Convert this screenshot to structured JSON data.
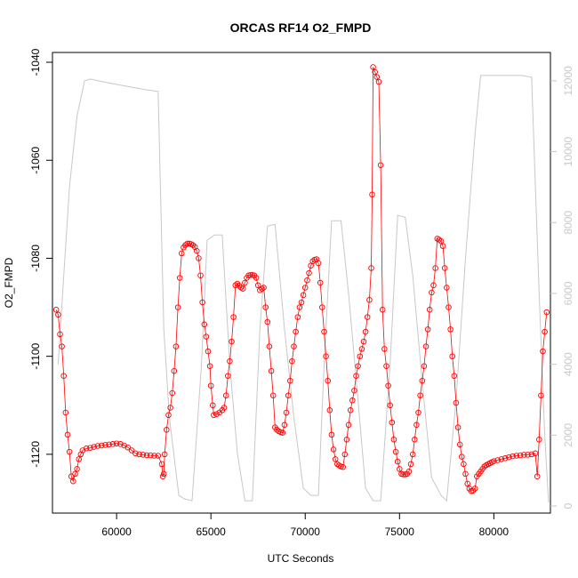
{
  "chart_data": {
    "type": "line",
    "title": "ORCAS RF14 O2_FMPD",
    "xlabel": "UTC Seconds",
    "ylabel": "O2_FMPD",
    "xlim": [
      56600,
      83000
    ],
    "ylim": [
      -1132,
      -1038
    ],
    "y2lim": [
      -200,
      12800
    ],
    "x_ticks": [
      60000,
      65000,
      70000,
      75000,
      80000
    ],
    "x_tick_labels": [
      "60000",
      "65000",
      "70000",
      "75000",
      "80000"
    ],
    "y_ticks": [
      -1040,
      -1060,
      -1080,
      -1100,
      -1120
    ],
    "y_tick_labels": [
      "-1040",
      "-1060",
      "-1080",
      "-1100",
      "-1120"
    ],
    "y2_ticks": [
      0,
      2000,
      4000,
      6000,
      8000,
      10000,
      12000
    ],
    "y2_tick_labels": [
      "0",
      "2000",
      "4000",
      "6000",
      "8000",
      "10000",
      "12000"
    ],
    "colors": {
      "o2_series": "#ff0000",
      "altitude_line": "#c8c8c8",
      "axis": "#000000"
    },
    "grid": false,
    "series": [
      {
        "axis": "left",
        "style": "line+circles",
        "points": [
          [
            56800,
            -1090.5
          ],
          [
            56900,
            -1091.5
          ],
          [
            57000,
            -1095.5
          ],
          [
            57100,
            -1098
          ],
          [
            57200,
            -1104
          ],
          [
            57300,
            -1111.5
          ],
          [
            57400,
            -1116
          ],
          [
            57500,
            -1119.5
          ],
          [
            57600,
            -1124.5
          ],
          [
            57700,
            -1125.5
          ],
          [
            57800,
            -1124
          ],
          [
            57900,
            -1123
          ],
          [
            58000,
            -1121
          ],
          [
            58100,
            -1120
          ],
          [
            58200,
            -1119.2
          ],
          [
            58400,
            -1118.8
          ],
          [
            58600,
            -1118.7
          ],
          [
            58800,
            -1118.5
          ],
          [
            59000,
            -1118.3
          ],
          [
            59200,
            -1118.2
          ],
          [
            59400,
            -1118.1
          ],
          [
            59600,
            -1118
          ],
          [
            59800,
            -1117.9
          ],
          [
            60000,
            -1117.8
          ],
          [
            60200,
            -1117.9
          ],
          [
            60400,
            -1118.2
          ],
          [
            60600,
            -1118.6
          ],
          [
            60800,
            -1119.2
          ],
          [
            61000,
            -1119.8
          ],
          [
            61200,
            -1120
          ],
          [
            61400,
            -1120.1
          ],
          [
            61600,
            -1120.2
          ],
          [
            61800,
            -1120.2
          ],
          [
            62000,
            -1120.3
          ],
          [
            62200,
            -1120.3
          ],
          [
            62400,
            -1122
          ],
          [
            62450,
            -1124.5
          ],
          [
            62500,
            -1124
          ],
          [
            62550,
            -1120
          ],
          [
            62650,
            -1115
          ],
          [
            62750,
            -1112
          ],
          [
            62850,
            -1110.5
          ],
          [
            62950,
            -1107.5
          ],
          [
            63050,
            -1103
          ],
          [
            63150,
            -1098
          ],
          [
            63250,
            -1090
          ],
          [
            63350,
            -1084
          ],
          [
            63450,
            -1079
          ],
          [
            63550,
            -1077.8
          ],
          [
            63650,
            -1077.3
          ],
          [
            63750,
            -1077
          ],
          [
            63850,
            -1077
          ],
          [
            63950,
            -1077.1
          ],
          [
            64050,
            -1077.3
          ],
          [
            64150,
            -1077.7
          ],
          [
            64250,
            -1078.5
          ],
          [
            64350,
            -1080
          ],
          [
            64450,
            -1083.5
          ],
          [
            64550,
            -1089
          ],
          [
            64650,
            -1093.5
          ],
          [
            64750,
            -1096
          ],
          [
            64850,
            -1099
          ],
          [
            64950,
            -1102
          ],
          [
            65000,
            -1106
          ],
          [
            65100,
            -1110
          ],
          [
            65150,
            -1112
          ],
          [
            65300,
            -1111.8
          ],
          [
            65450,
            -1111.5
          ],
          [
            65600,
            -1111
          ],
          [
            65700,
            -1110.5
          ],
          [
            65800,
            -1108
          ],
          [
            65900,
            -1104
          ],
          [
            66000,
            -1101
          ],
          [
            66100,
            -1097
          ],
          [
            66200,
            -1092
          ],
          [
            66300,
            -1085.5
          ],
          [
            66400,
            -1085.2
          ],
          [
            66500,
            -1085.6
          ],
          [
            66600,
            -1086
          ],
          [
            66700,
            -1086.2
          ],
          [
            66800,
            -1085
          ],
          [
            66900,
            -1084
          ],
          [
            67000,
            -1083.5
          ],
          [
            67100,
            -1083.4
          ],
          [
            67200,
            -1083.4
          ],
          [
            67300,
            -1083.5
          ],
          [
            67400,
            -1084
          ],
          [
            67500,
            -1085.5
          ],
          [
            67600,
            -1086.5
          ],
          [
            67700,
            -1086.2
          ],
          [
            67800,
            -1086
          ],
          [
            67900,
            -1090
          ],
          [
            68000,
            -1093
          ],
          [
            68100,
            -1098
          ],
          [
            68200,
            -1103
          ],
          [
            68300,
            -1108
          ],
          [
            68400,
            -1114.5
          ],
          [
            68500,
            -1115
          ],
          [
            68600,
            -1115.3
          ],
          [
            68700,
            -1115.5
          ],
          [
            68800,
            -1115.6
          ],
          [
            68900,
            -1114
          ],
          [
            69000,
            -1111.5
          ],
          [
            69100,
            -1108
          ],
          [
            69200,
            -1105
          ],
          [
            69300,
            -1101
          ],
          [
            69400,
            -1098
          ],
          [
            69500,
            -1095
          ],
          [
            69600,
            -1092
          ],
          [
            69700,
            -1090
          ],
          [
            69800,
            -1089
          ],
          [
            69900,
            -1087.5
          ],
          [
            70000,
            -1086
          ],
          [
            70100,
            -1084.5
          ],
          [
            70200,
            -1083
          ],
          [
            70300,
            -1081.5
          ],
          [
            70400,
            -1080.6
          ],
          [
            70500,
            -1080.3
          ],
          [
            70600,
            -1080.2
          ],
          [
            70700,
            -1081
          ],
          [
            70800,
            -1085
          ],
          [
            70900,
            -1090
          ],
          [
            71000,
            -1095
          ],
          [
            71100,
            -1100
          ],
          [
            71200,
            -1105
          ],
          [
            71300,
            -1111
          ],
          [
            71400,
            -1116
          ],
          [
            71500,
            -1119
          ],
          [
            71600,
            -1121
          ],
          [
            71700,
            -1122
          ],
          [
            71800,
            -1122.3
          ],
          [
            71900,
            -1122.5
          ],
          [
            72000,
            -1122.6
          ],
          [
            72100,
            -1120
          ],
          [
            72200,
            -1117
          ],
          [
            72300,
            -1114
          ],
          [
            72400,
            -1111
          ],
          [
            72500,
            -1109
          ],
          [
            72600,
            -1107
          ],
          [
            72700,
            -1104
          ],
          [
            72800,
            -1102
          ],
          [
            72900,
            -1100
          ],
          [
            73000,
            -1098.5
          ],
          [
            73100,
            -1097
          ],
          [
            73200,
            -1095
          ],
          [
            73300,
            -1092
          ],
          [
            73400,
            -1088.5
          ],
          [
            73500,
            -1082
          ],
          [
            73550,
            -1067
          ],
          [
            73600,
            -1041
          ],
          [
            73700,
            -1042
          ],
          [
            73800,
            -1043
          ],
          [
            73900,
            -1044
          ],
          [
            74000,
            -1061
          ],
          [
            74100,
            -1090.5
          ],
          [
            74200,
            -1098.5
          ],
          [
            74300,
            -1102
          ],
          [
            74400,
            -1106
          ],
          [
            74500,
            -1110
          ],
          [
            74600,
            -1113.5
          ],
          [
            74700,
            -1117
          ],
          [
            74800,
            -1119.5
          ],
          [
            74900,
            -1121.5
          ],
          [
            75000,
            -1123
          ],
          [
            75100,
            -1124
          ],
          [
            75200,
            -1124.1
          ],
          [
            75300,
            -1124.1
          ],
          [
            75400,
            -1124
          ],
          [
            75500,
            -1123.5
          ],
          [
            75600,
            -1122
          ],
          [
            75700,
            -1120
          ],
          [
            75800,
            -1117
          ],
          [
            75900,
            -1114
          ],
          [
            76000,
            -1111.5
          ],
          [
            76100,
            -1108
          ],
          [
            76200,
            -1105
          ],
          [
            76300,
            -1102
          ],
          [
            76400,
            -1098
          ],
          [
            76500,
            -1094.5
          ],
          [
            76600,
            -1090.5
          ],
          [
            76700,
            -1087
          ],
          [
            76800,
            -1085.5
          ],
          [
            76900,
            -1082
          ],
          [
            77000,
            -1076
          ],
          [
            77100,
            -1076.2
          ],
          [
            77200,
            -1076.5
          ],
          [
            77300,
            -1077.5
          ],
          [
            77400,
            -1082
          ],
          [
            77500,
            -1086
          ],
          [
            77600,
            -1090
          ],
          [
            77700,
            -1094.5
          ],
          [
            77800,
            -1100
          ],
          [
            77900,
            -1104
          ],
          [
            78000,
            -1109.5
          ],
          [
            78100,
            -1114.5
          ],
          [
            78200,
            -1118
          ],
          [
            78300,
            -1120.5
          ],
          [
            78400,
            -1122
          ],
          [
            78500,
            -1124
          ],
          [
            78600,
            -1126
          ],
          [
            78700,
            -1127
          ],
          [
            78800,
            -1127.5
          ],
          [
            78900,
            -1127.4
          ],
          [
            79000,
            -1127
          ],
          [
            79100,
            -1124.5
          ],
          [
            79200,
            -1124
          ],
          [
            79300,
            -1123.5
          ],
          [
            79400,
            -1123
          ],
          [
            79500,
            -1122.5
          ],
          [
            79600,
            -1122.2
          ],
          [
            79700,
            -1122
          ],
          [
            79800,
            -1121.8
          ],
          [
            79900,
            -1121.6
          ],
          [
            80000,
            -1121.4
          ],
          [
            80200,
            -1121.2
          ],
          [
            80400,
            -1121
          ],
          [
            80600,
            -1120.8
          ],
          [
            80800,
            -1120.6
          ],
          [
            81000,
            -1120.4
          ],
          [
            81200,
            -1120.3
          ],
          [
            81400,
            -1120.2
          ],
          [
            81600,
            -1120.1
          ],
          [
            81800,
            -1120.1
          ],
          [
            82000,
            -1120
          ],
          [
            82200,
            -1119.8
          ],
          [
            82300,
            -1124.5
          ],
          [
            82400,
            -1117
          ],
          [
            82500,
            -1108
          ],
          [
            82600,
            -1099
          ],
          [
            82700,
            -1095
          ],
          [
            82800,
            -1091
          ]
        ]
      },
      {
        "axis": "right",
        "style": "line",
        "points": [
          [
            56900,
            4000
          ],
          [
            57200,
            6500
          ],
          [
            57500,
            9000
          ],
          [
            57900,
            11000
          ],
          [
            58300,
            12000
          ],
          [
            58600,
            12050
          ],
          [
            59500,
            11950
          ],
          [
            60500,
            11850
          ],
          [
            61500,
            11750
          ],
          [
            62200,
            11700
          ],
          [
            62500,
            5000
          ],
          [
            62800,
            2500
          ],
          [
            63300,
            300
          ],
          [
            63600,
            200
          ],
          [
            64000,
            150
          ],
          [
            64500,
            4000
          ],
          [
            64800,
            7500
          ],
          [
            65200,
            7650
          ],
          [
            65600,
            7650
          ],
          [
            66000,
            4000
          ],
          [
            66400,
            1500
          ],
          [
            66800,
            150
          ],
          [
            67200,
            150
          ],
          [
            67600,
            5000
          ],
          [
            68000,
            7900
          ],
          [
            68400,
            7950
          ],
          [
            68900,
            5000
          ],
          [
            69400,
            2500
          ],
          [
            69900,
            500
          ],
          [
            70300,
            300
          ],
          [
            70700,
            300
          ],
          [
            71000,
            4000
          ],
          [
            71400,
            8050
          ],
          [
            71900,
            8050
          ],
          [
            72300,
            6000
          ],
          [
            72800,
            3000
          ],
          [
            73200,
            500
          ],
          [
            73600,
            150
          ],
          [
            74000,
            150
          ],
          [
            74500,
            4000
          ],
          [
            74900,
            8200
          ],
          [
            75300,
            8150
          ],
          [
            75700,
            6500
          ],
          [
            76200,
            3500
          ],
          [
            76700,
            800
          ],
          [
            77200,
            300
          ],
          [
            77500,
            150
          ],
          [
            78000,
            3000
          ],
          [
            78500,
            7000
          ],
          [
            79000,
            10500
          ],
          [
            79300,
            12150
          ],
          [
            79600,
            12150
          ],
          [
            80500,
            12150
          ],
          [
            81500,
            12150
          ],
          [
            82000,
            12100
          ],
          [
            82400,
            6000
          ],
          [
            82700,
            2000
          ],
          [
            82900,
            100
          ]
        ]
      }
    ]
  }
}
